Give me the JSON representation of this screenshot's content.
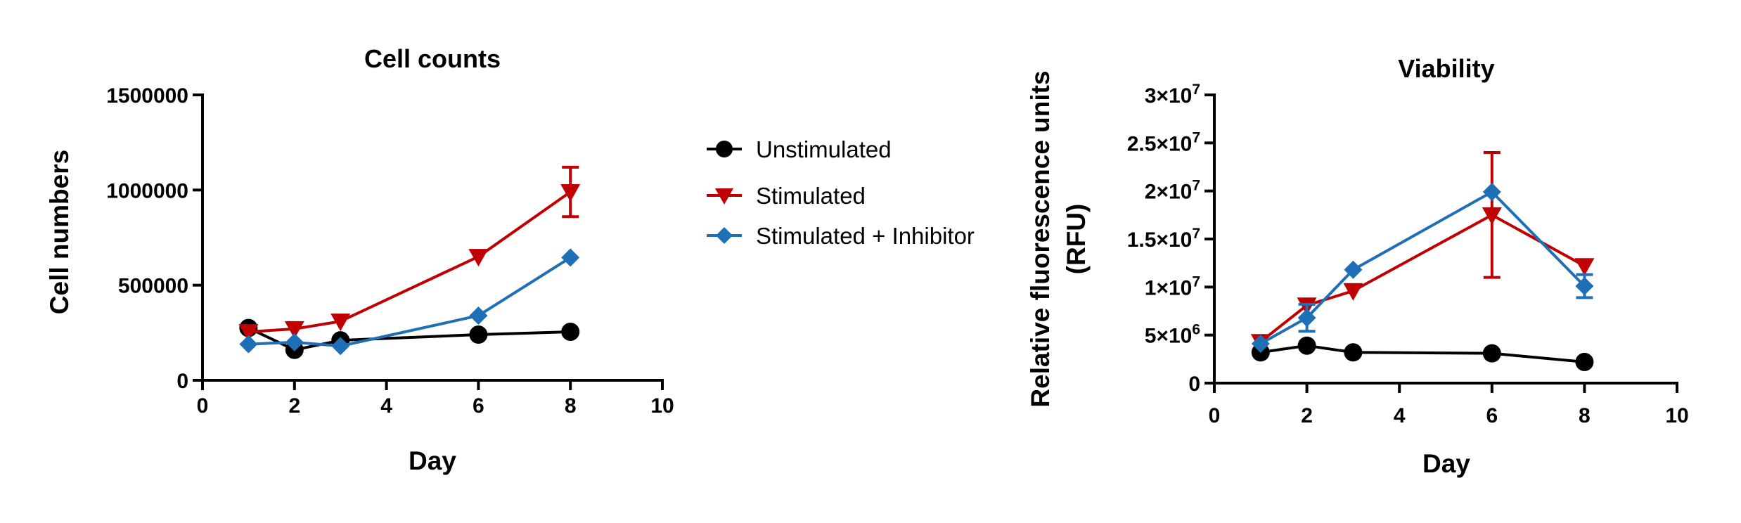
{
  "chart_data": [
    {
      "type": "line",
      "title": "Cell counts",
      "xlabel": "Day",
      "ylabel": "Cell numbers",
      "xlim": [
        0,
        10
      ],
      "ylim": [
        0,
        1500000
      ],
      "xticks": [
        0,
        2,
        4,
        6,
        8,
        10
      ],
      "yticks": [
        0,
        500000,
        1000000,
        1500000
      ],
      "ytick_labels": [
        "0",
        "500000",
        "1000000",
        "1500000"
      ],
      "grid": false,
      "series": [
        {
          "name": "Unstimulated",
          "color": "#000000",
          "marker": "circle",
          "x": [
            1,
            2,
            3,
            6,
            8
          ],
          "y": [
            275000,
            160000,
            210000,
            240000,
            255000
          ],
          "err": [
            0,
            0,
            0,
            0,
            0
          ]
        },
        {
          "name": "Stimulated",
          "color": "#c00000",
          "marker": "triangle-down",
          "x": [
            1,
            2,
            3,
            6,
            8
          ],
          "y": [
            255000,
            270000,
            310000,
            650000,
            990000
          ],
          "err": [
            0,
            0,
            0,
            0,
            130000
          ]
        },
        {
          "name": "Stimulated + Inhibitor",
          "color": "#1f6fb7",
          "marker": "diamond",
          "x": [
            1,
            2,
            3,
            6,
            8
          ],
          "y": [
            190000,
            200000,
            180000,
            340000,
            645000
          ],
          "err": [
            0,
            0,
            0,
            0,
            0
          ]
        }
      ]
    },
    {
      "type": "line",
      "title": "Viability",
      "xlabel": "Day",
      "ylabel": "Relative fluorescence units (RFU)",
      "ylabel_lines": [
        "Relative fluorescence units",
        "(RFU)"
      ],
      "xlim": [
        0,
        10
      ],
      "ylim": [
        0,
        30000000
      ],
      "xticks": [
        0,
        2,
        4,
        6,
        8,
        10
      ],
      "yticks": [
        0,
        5000000,
        10000000,
        15000000,
        20000000,
        25000000,
        30000000
      ],
      "ytick_labels": [
        {
          "base": "0",
          "exp": ""
        },
        {
          "base": "5×10",
          "exp": "6"
        },
        {
          "base": "1×10",
          "exp": "7"
        },
        {
          "base": "1.5×10",
          "exp": "7"
        },
        {
          "base": "2×10",
          "exp": "7"
        },
        {
          "base": "2.5×10",
          "exp": "7"
        },
        {
          "base": "3×10",
          "exp": "7"
        }
      ],
      "grid": false,
      "series": [
        {
          "name": "Unstimulated",
          "color": "#000000",
          "marker": "circle",
          "x": [
            1,
            2,
            3,
            6,
            8
          ],
          "y": [
            3200000,
            3900000,
            3200000,
            3100000,
            2200000
          ],
          "err": [
            0,
            0,
            0,
            0,
            0
          ]
        },
        {
          "name": "Stimulated",
          "color": "#c00000",
          "marker": "triangle-down",
          "x": [
            1,
            2,
            3,
            6,
            8
          ],
          "y": [
            4300000,
            8100000,
            9600000,
            17500000,
            12200000
          ],
          "err": [
            0,
            0,
            0,
            6500000,
            0
          ]
        },
        {
          "name": "Stimulated + Inhibitor",
          "color": "#1f6fb7",
          "marker": "diamond",
          "x": [
            1,
            2,
            3,
            6,
            8
          ],
          "y": [
            4100000,
            6800000,
            11800000,
            19900000,
            10100000
          ],
          "err": [
            0,
            1400000,
            0,
            0,
            1200000
          ]
        }
      ]
    }
  ],
  "legend": {
    "position": "between-charts",
    "items": [
      {
        "label": "Unstimulated",
        "color": "#000000",
        "marker": "circle"
      },
      {
        "label": "Stimulated",
        "color": "#c00000",
        "marker": "triangle-down"
      },
      {
        "label": "Stimulated + Inhibitor",
        "color": "#1f6fb7",
        "marker": "diamond"
      }
    ]
  }
}
